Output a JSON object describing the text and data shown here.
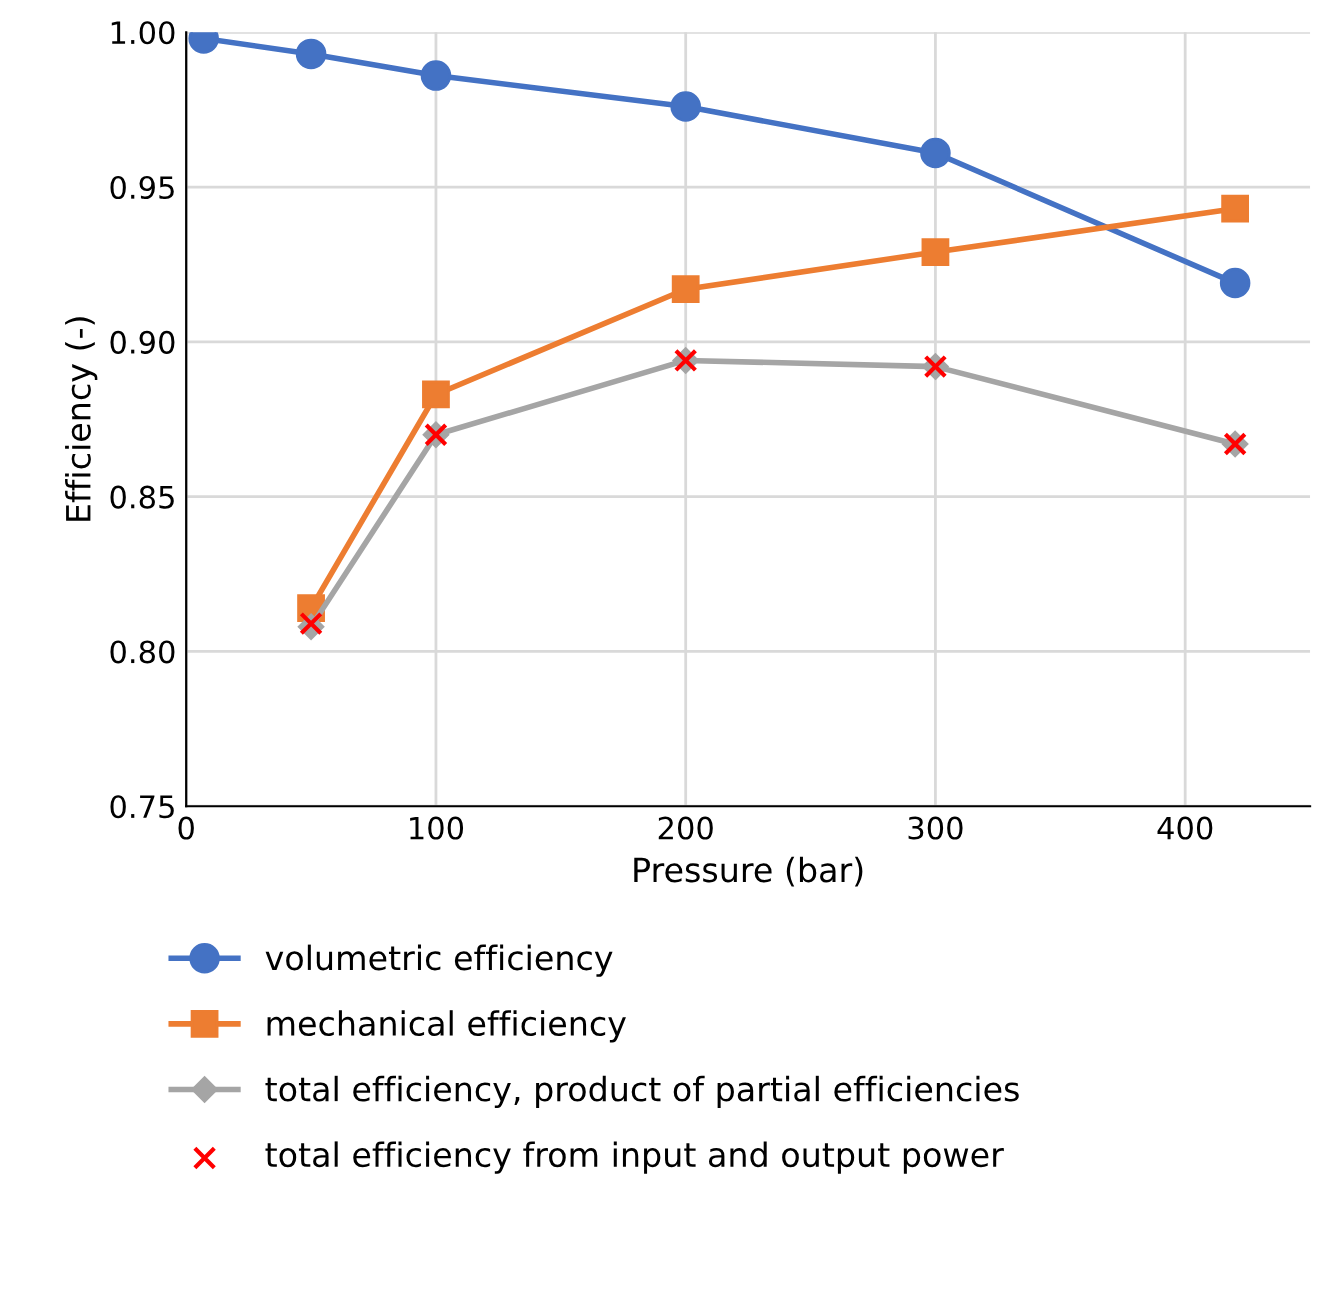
{
  "chart_data": {
    "type": "line",
    "xlabel": "Pressure (bar)",
    "ylabel": "Efficiency (-)",
    "xlim": [
      0,
      450
    ],
    "xticks": [
      0,
      100,
      200,
      300,
      400
    ],
    "ylim": [
      0.75,
      1.0
    ],
    "yticks": [
      {
        "value": 0.75,
        "label": "0.75"
      },
      {
        "value": 0.8,
        "label": "0.80"
      },
      {
        "value": 0.85,
        "label": "0.85"
      },
      {
        "value": 0.9,
        "label": "0.90"
      },
      {
        "value": 0.95,
        "label": "0.95"
      },
      {
        "value": 1.0,
        "label": "1.00"
      }
    ],
    "grid": true,
    "legend": "bottom",
    "series": [
      {
        "name": "volumetric efficiency",
        "color": "#4472c4",
        "marker": "circle",
        "x": [
          7,
          50,
          100,
          200,
          300,
          420
        ],
        "values": [
          0.998,
          0.993,
          0.986,
          0.976,
          0.961,
          0.919
        ]
      },
      {
        "name": "mechanical efficiency",
        "color": "#ed7d31",
        "marker": "square",
        "x": [
          50,
          100,
          200,
          300,
          420
        ],
        "values": [
          0.814,
          0.883,
          0.917,
          0.929,
          0.943
        ]
      },
      {
        "name": "total efficiency, product of partial efficiencies",
        "color": "#a5a5a5",
        "marker": "diamond",
        "x": [
          50,
          100,
          200,
          300,
          420
        ],
        "values": [
          0.808,
          0.87,
          0.894,
          0.892,
          0.867
        ]
      },
      {
        "name": "total efficiency from input and output power",
        "type": "scatter",
        "color": "#ff0000",
        "marker": "cross",
        "x": [
          50,
          100,
          200,
          300,
          420
        ],
        "values": [
          0.809,
          0.87,
          0.894,
          0.892,
          0.867
        ]
      }
    ]
  }
}
